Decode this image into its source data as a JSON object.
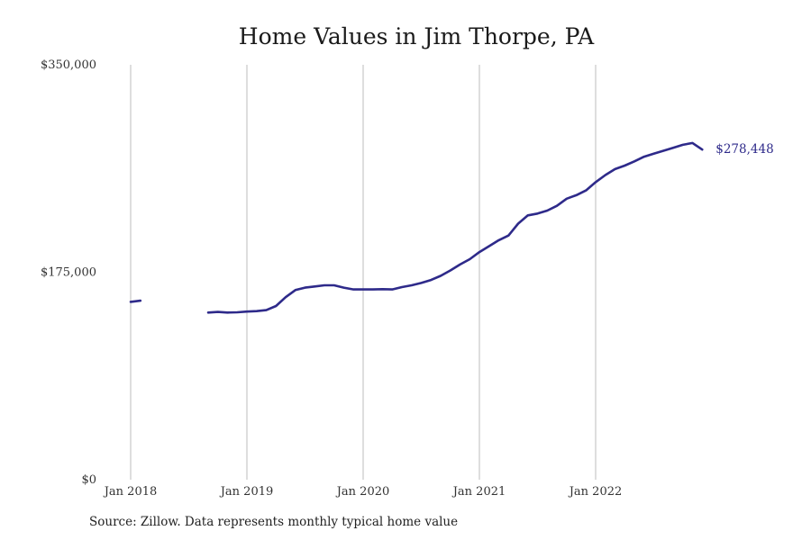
{
  "chart_data": {
    "type": "line",
    "title": "Home Values in Jim Thorpe, PA",
    "source_note": "Source: Zillow. Data represents monthly typical home value",
    "xlabel": "",
    "ylabel": "",
    "ylim": [
      0,
      350000
    ],
    "y_ticks": [
      {
        "value": 0,
        "label": "$0"
      },
      {
        "value": 175000,
        "label": "$175,000"
      },
      {
        "value": 350000,
        "label": "$350,000"
      }
    ],
    "x_ticks": [
      {
        "value": "2018-01",
        "label": "Jan 2018"
      },
      {
        "value": "2019-01",
        "label": "Jan 2019"
      },
      {
        "value": "2020-01",
        "label": "Jan 2020"
      },
      {
        "value": "2021-01",
        "label": "Jan 2021"
      },
      {
        "value": "2022-01",
        "label": "Jan 2022"
      }
    ],
    "grid": {
      "x": true,
      "y": false
    },
    "line_color": "#2e2a8a",
    "end_label": "$278,448",
    "series": [
      {
        "x": [
          "2018-01",
          "2018-02",
          "2018-03",
          "2018-04",
          "2018-05",
          "2018-06",
          "2018-07",
          "2018-08",
          "2018-09",
          "2018-10",
          "2018-11",
          "2018-12",
          "2019-01",
          "2019-02",
          "2019-03",
          "2019-04",
          "2019-05",
          "2019-06",
          "2019-07",
          "2019-08",
          "2019-09",
          "2019-10",
          "2019-11",
          "2019-12",
          "2020-01",
          "2020-02",
          "2020-03",
          "2020-04",
          "2020-05",
          "2020-06",
          "2020-07",
          "2020-08",
          "2020-09",
          "2020-10",
          "2020-11",
          "2020-12",
          "2021-01",
          "2021-02",
          "2021-03",
          "2021-04",
          "2021-05",
          "2021-06",
          "2021-07",
          "2021-08",
          "2021-09",
          "2021-10",
          "2021-11",
          "2021-12",
          "2022-01",
          "2022-02",
          "2022-03",
          "2022-04",
          "2022-05",
          "2022-06",
          "2022-07",
          "2022-08",
          "2022-09",
          "2022-10",
          "2022-11",
          "2022-12"
        ],
        "values": [
          150000,
          151000,
          null,
          null,
          null,
          null,
          null,
          null,
          141000,
          141500,
          141000,
          141200,
          141800,
          142200,
          143000,
          146500,
          154000,
          160000,
          162000,
          163000,
          164000,
          164000,
          162000,
          160500,
          160500,
          160500,
          160700,
          160500,
          162500,
          164000,
          166000,
          168500,
          172000,
          176500,
          181500,
          186000,
          192000,
          197000,
          202000,
          206000,
          216000,
          223000,
          224500,
          227000,
          231000,
          237000,
          240000,
          244000,
          251000,
          257000,
          262000,
          265000,
          268500,
          272500,
          275000,
          277500,
          280000,
          282500,
          284000,
          278448
        ]
      }
    ]
  }
}
